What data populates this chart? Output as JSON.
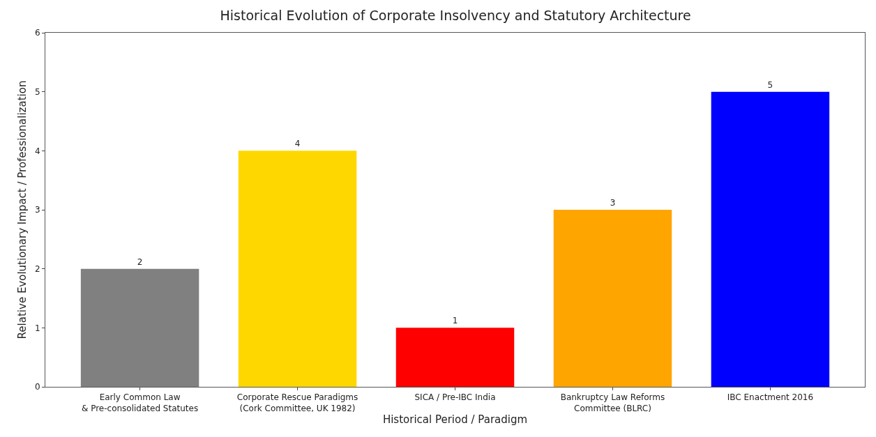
{
  "chart_data": {
    "type": "bar",
    "title": "Historical Evolution of Corporate Insolvency and Statutory Architecture",
    "xlabel": "Historical Period / Paradigm",
    "ylabel": "Relative Evolutionary Impact / Professionalization",
    "categories": [
      "Early Common Law\n& Pre-consolidated Statutes",
      "Corporate Rescue Paradigms\n(Cork Committee, UK 1982)",
      "SICA / Pre-IBC India",
      "Bankruptcy Law Reforms\nCommittee (BLRC)",
      "IBC Enactment 2016"
    ],
    "values": [
      2,
      4,
      1,
      3,
      5
    ],
    "colors": [
      "#808080",
      "#ffd700",
      "#ff0000",
      "#ffa500",
      "#0000ff"
    ],
    "ylim": [
      0,
      6
    ],
    "yticks": [
      0,
      1,
      2,
      3,
      4,
      5,
      6
    ],
    "grid": false,
    "data_labels": true
  }
}
